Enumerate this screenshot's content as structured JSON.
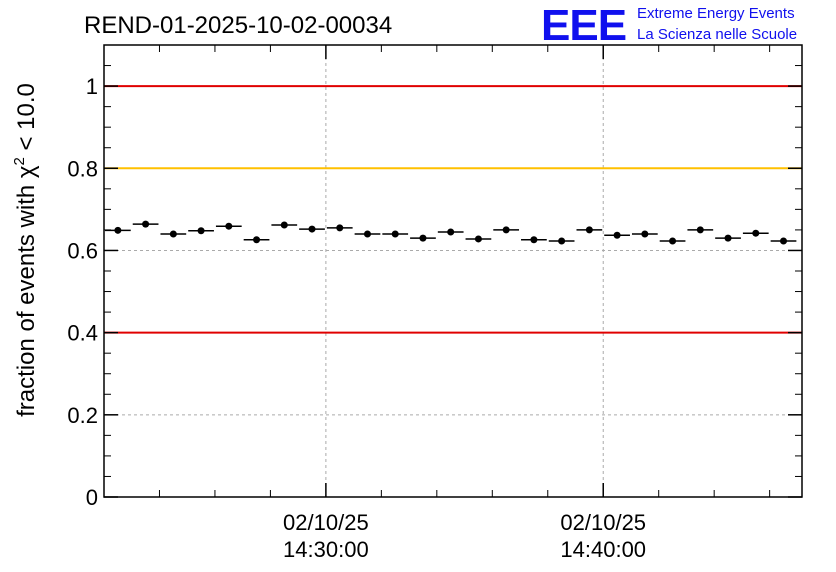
{
  "header": {
    "run_title": "REND-01-2025-10-02-00034",
    "logo_text": "EEE",
    "logo_line1": "Extreme Energy Events",
    "logo_line2": "La Scienza nelle Scuole"
  },
  "colors": {
    "limit_red": "#e00000",
    "limit_yellow": "#ffc000",
    "logo_blue": "#1010ee",
    "grid": "#aaaaaa",
    "points": "#000000"
  },
  "chart_data": {
    "type": "scatter",
    "title": "REND-01-2025-10-02-00034",
    "xlabel": "",
    "ylabel_main": "fraction of events with χ",
    "ylabel_sup": "2",
    "ylabel_tail": " < 10.0",
    "ylim": [
      0,
      1.1
    ],
    "xlim": [
      "2025-10-02 14:22:00",
      "2025-10-02 14:47:10"
    ],
    "x_ticks": [
      {
        "date": "02/10/25",
        "time": "14:30:00",
        "x": "2025-10-02 14:30:00"
      },
      {
        "date": "02/10/25",
        "time": "14:40:00",
        "x": "2025-10-02 14:40:00"
      }
    ],
    "y_ticks": [
      {
        "value": 0,
        "label": "0"
      },
      {
        "value": 0.2,
        "label": "0.2"
      },
      {
        "value": 0.4,
        "label": "0.4"
      },
      {
        "value": 0.6,
        "label": "0.6"
      },
      {
        "value": 0.8,
        "label": "0.8"
      },
      {
        "value": 1,
        "label": "1"
      }
    ],
    "grid": true,
    "reference_lines": [
      {
        "y": 1.0,
        "color": "red"
      },
      {
        "y": 0.8,
        "color": "yellow"
      },
      {
        "y": 0.4,
        "color": "red"
      }
    ],
    "bin_width_seconds": 60,
    "series": [
      {
        "points": [
          {
            "x": "2025-10-02 14:22:30",
            "y": 0.649
          },
          {
            "x": "2025-10-02 14:23:30",
            "y": 0.664
          },
          {
            "x": "2025-10-02 14:24:30",
            "y": 0.64
          },
          {
            "x": "2025-10-02 14:25:30",
            "y": 0.648
          },
          {
            "x": "2025-10-02 14:26:30",
            "y": 0.659
          },
          {
            "x": "2025-10-02 14:27:30",
            "y": 0.626
          },
          {
            "x": "2025-10-02 14:28:30",
            "y": 0.662
          },
          {
            "x": "2025-10-02 14:29:30",
            "y": 0.652
          },
          {
            "x": "2025-10-02 14:30:30",
            "y": 0.655
          },
          {
            "x": "2025-10-02 14:31:30",
            "y": 0.64
          },
          {
            "x": "2025-10-02 14:32:30",
            "y": 0.64
          },
          {
            "x": "2025-10-02 14:33:30",
            "y": 0.63
          },
          {
            "x": "2025-10-02 14:34:30",
            "y": 0.645
          },
          {
            "x": "2025-10-02 14:35:30",
            "y": 0.628
          },
          {
            "x": "2025-10-02 14:36:30",
            "y": 0.65
          },
          {
            "x": "2025-10-02 14:37:30",
            "y": 0.626
          },
          {
            "x": "2025-10-02 14:38:30",
            "y": 0.623
          },
          {
            "x": "2025-10-02 14:39:30",
            "y": 0.65
          },
          {
            "x": "2025-10-02 14:40:30",
            "y": 0.637
          },
          {
            "x": "2025-10-02 14:41:30",
            "y": 0.64
          },
          {
            "x": "2025-10-02 14:42:30",
            "y": 0.623
          },
          {
            "x": "2025-10-02 14:43:30",
            "y": 0.65
          },
          {
            "x": "2025-10-02 14:44:30",
            "y": 0.63
          },
          {
            "x": "2025-10-02 14:45:30",
            "y": 0.642
          },
          {
            "x": "2025-10-02 14:46:30",
            "y": 0.623
          }
        ]
      }
    ]
  }
}
